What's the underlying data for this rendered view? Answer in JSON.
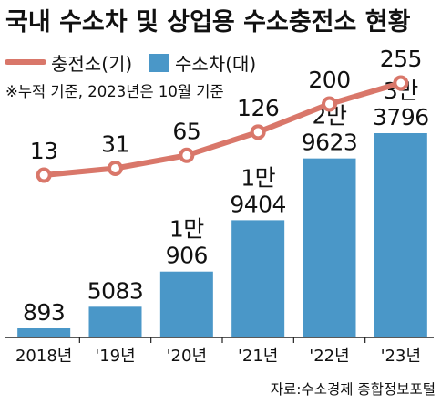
{
  "chart_data": {
    "type": "bar",
    "title": "국내 수소차 및 상업용 수소충전소 현황",
    "note": "※누적 기준, 2023년은 10월 기준",
    "source": "자료:수소경제 종합정보포털",
    "categories": [
      "2018년",
      "'19년",
      "'20년",
      "'21년",
      "'22년",
      "'23년"
    ],
    "legend": [
      {
        "name": "충전소(기)",
        "kind": "line"
      },
      {
        "name": "수소차(대)",
        "kind": "bar"
      }
    ],
    "series": [
      {
        "name": "수소차(대)",
        "type": "bar",
        "values": [
          893,
          5083,
          10906,
          19404,
          29623,
          33796
        ],
        "labels": [
          [
            "893"
          ],
          [
            "5083"
          ],
          [
            "1만",
            "906"
          ],
          [
            "1만",
            "9404"
          ],
          [
            "2만",
            "9623"
          ],
          [
            "3만",
            "3796"
          ]
        ]
      },
      {
        "name": "충전소(기)",
        "type": "line",
        "values": [
          13,
          31,
          65,
          126,
          200,
          255
        ],
        "labels": [
          "13",
          "31",
          "65",
          "126",
          "200",
          "255"
        ]
      }
    ],
    "colors": {
      "bar": "#4a97c8",
      "line": "#d9776a",
      "marker_fill": "#ffffff",
      "axis": "#222222",
      "title": "#111111"
    }
  }
}
